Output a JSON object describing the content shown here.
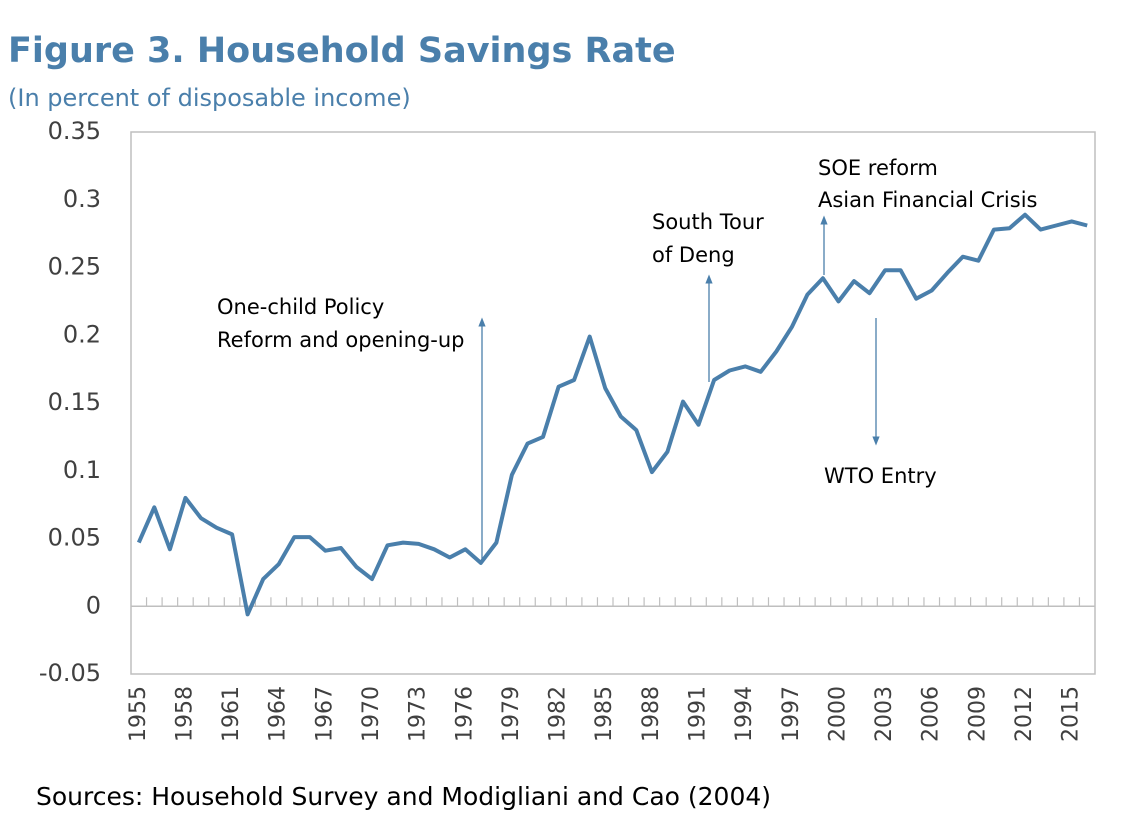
{
  "chart_data": {
    "type": "line",
    "title": "Figure 3. Household Savings Rate",
    "subtitle": "(In percent of disposable income)",
    "source": "Sources: Household Survey and Modigliani and Cao (2004)",
    "categories": [
      "1955",
      null,
      null,
      "1958",
      null,
      null,
      "1961",
      null,
      null,
      "1964",
      null,
      null,
      "1967",
      null,
      null,
      "1970",
      null,
      null,
      "1973",
      null,
      null,
      "1976",
      null,
      null,
      "1979",
      null,
      null,
      "1982",
      null,
      null,
      "1985",
      null,
      null,
      "1988",
      null,
      null,
      "1991",
      null,
      null,
      "1994",
      null,
      null,
      "1997",
      null,
      null,
      "2000",
      null,
      null,
      "2003",
      null,
      null,
      "2006",
      null,
      null,
      "2009",
      null,
      null,
      "2012",
      null,
      null,
      "2015",
      null
    ],
    "values": [
      0.047,
      0.073,
      0.042,
      0.08,
      0.065,
      0.058,
      0.053,
      -0.006,
      0.02,
      0.031,
      0.051,
      0.051,
      0.041,
      0.043,
      0.029,
      0.02,
      0.045,
      0.047,
      0.046,
      0.042,
      0.036,
      0.042,
      0.032,
      0.047,
      0.097,
      0.12,
      0.125,
      0.162,
      0.167,
      0.199,
      0.161,
      0.14,
      0.13,
      0.099,
      0.114,
      0.151,
      0.134,
      0.167,
      0.174,
      0.177,
      0.173,
      0.188,
      0.206,
      0.23,
      0.242,
      0.225,
      0.24,
      0.231,
      0.248,
      0.248,
      0.227,
      0.233,
      0.246,
      0.258,
      0.255,
      0.278,
      0.279,
      0.289,
      0.278,
      0.281,
      0.284,
      0.281
    ],
    "color": "#4a7fab",
    "ylim": [
      -0.05,
      0.35
    ],
    "yticks": [
      -0.05,
      0,
      0.05,
      0.1,
      0.15,
      0.2,
      0.25,
      0.3,
      0.35
    ],
    "annotations": [
      "One-child Policy",
      "Reform and opening-up",
      "South Tour",
      "of Deng",
      "SOE reform",
      "Asian Financial Crisis",
      "WTO Entry"
    ]
  }
}
